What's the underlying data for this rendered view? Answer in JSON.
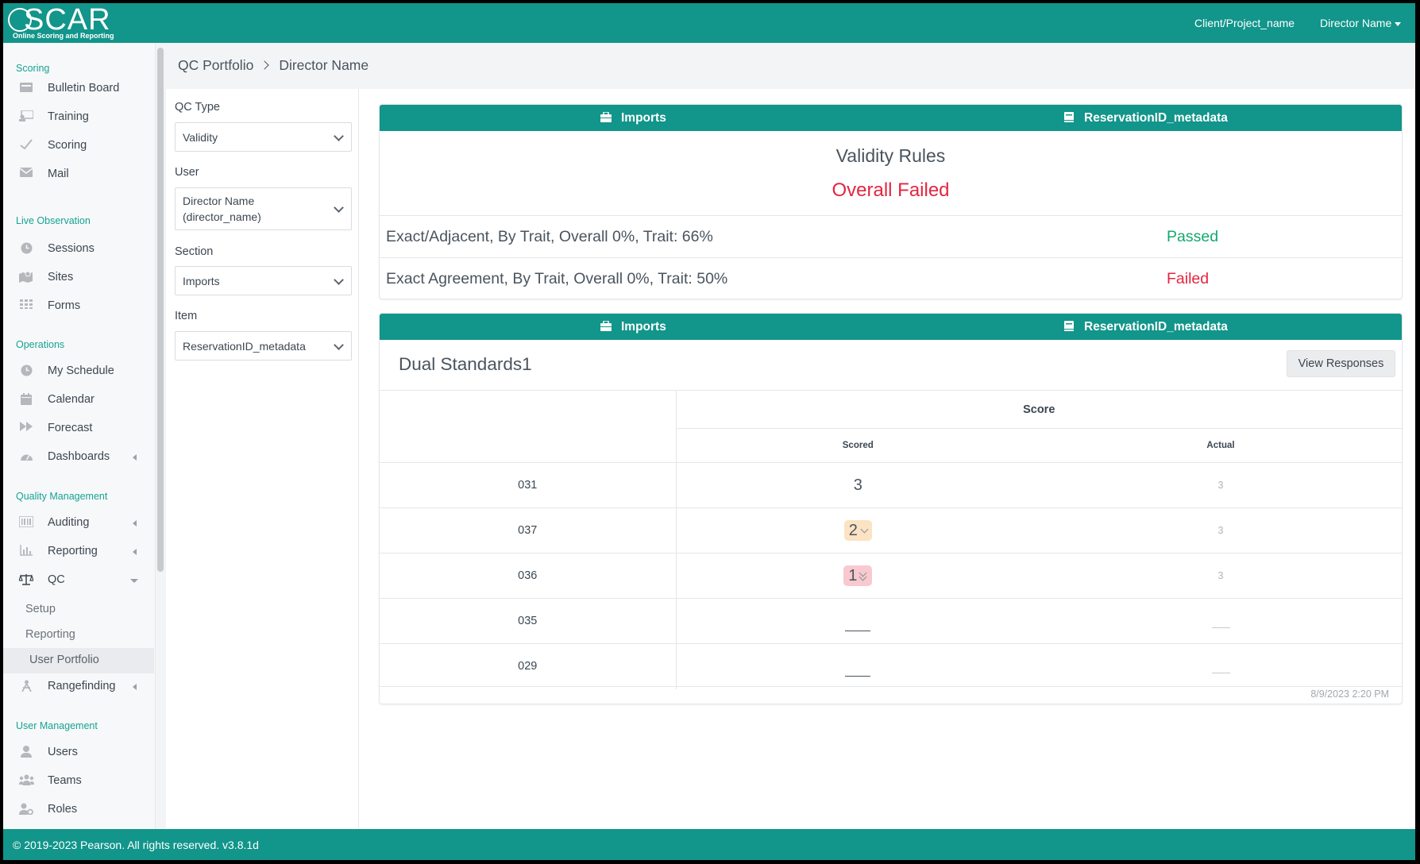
{
  "app": {
    "logo_text": "SCAR",
    "logo_tagline": "Online Scoring and Reporting",
    "project": "Client/Project_name",
    "user_menu": "Director Name"
  },
  "sidebar": {
    "sections": [
      {
        "heading": "Scoring",
        "items": [
          {
            "label": "Bulletin Board",
            "icon": "bulletin-board-icon"
          },
          {
            "label": "Training",
            "icon": "training-icon"
          },
          {
            "label": "Scoring",
            "icon": "check-icon"
          },
          {
            "label": "Mail",
            "icon": "mail-icon"
          }
        ]
      },
      {
        "heading": "Live Observation",
        "items": [
          {
            "label": "Sessions",
            "icon": "clock-icon"
          },
          {
            "label": "Sites",
            "icon": "map-icon"
          },
          {
            "label": "Forms",
            "icon": "grid-icon"
          }
        ]
      },
      {
        "heading": "Operations",
        "items": [
          {
            "label": "My Schedule",
            "icon": "clock-icon"
          },
          {
            "label": "Calendar",
            "icon": "calendar-icon"
          },
          {
            "label": "Forecast",
            "icon": "fast-forward-icon"
          },
          {
            "label": "Dashboards",
            "icon": "gauge-icon"
          }
        ]
      },
      {
        "heading": "Quality Management",
        "items": [
          {
            "label": "Auditing",
            "icon": "barcode-icon"
          },
          {
            "label": "Reporting",
            "icon": "bar-chart-icon"
          },
          {
            "label": "QC",
            "icon": "balance-scale-icon"
          }
        ],
        "sub_items": [
          "Setup",
          "Reporting",
          "User Portfolio"
        ]
      },
      {
        "heading": "Rangefinding",
        "items": [
          {
            "label": "Rangefinding",
            "icon": "compass-icon"
          }
        ]
      },
      {
        "heading": "User Management",
        "items": [
          {
            "label": "Users",
            "icon": "user-icon"
          },
          {
            "label": "Teams",
            "icon": "users-icon"
          },
          {
            "label": "Roles",
            "icon": "user-cog-icon"
          }
        ]
      }
    ]
  },
  "breadcrumb": {
    "root": "QC Portfolio",
    "current": "Director Name"
  },
  "filters": {
    "qc_type": {
      "label": "QC Type",
      "value": "Validity"
    },
    "user": {
      "label": "User",
      "value": "Director Name\n(director_name)"
    },
    "section": {
      "label": "Section",
      "value": "Imports"
    },
    "item": {
      "label": "Item",
      "value": "ReservationID_metadata"
    }
  },
  "validity_card": {
    "section_label": "Imports",
    "item_label": "ReservationID_metadata",
    "title": "Validity Rules",
    "overall": "Overall Failed",
    "rules": [
      {
        "rule": "Exact/Adjacent, By Trait, Overall 0%, Trait: 66%",
        "status": "Passed",
        "status_color": "#14a86e"
      },
      {
        "rule": "Exact Agreement, By Trait, Overall 0%, Trait: 50%",
        "status": "Failed",
        "status_color": "#e4253f"
      }
    ]
  },
  "standards_card": {
    "section_label": "Imports",
    "item_label": "ReservationID_metadata",
    "title": "Dual Standards1",
    "view_button": "View Responses",
    "score_header": "Score",
    "col_scored": "Scored",
    "col_actual": "Actual",
    "rows": [
      {
        "id": "031",
        "scored": "3",
        "actual": "3"
      },
      {
        "id": "037",
        "scored": "2",
        "actual": "3"
      },
      {
        "id": "036",
        "scored": "1",
        "actual": "3"
      },
      {
        "id": "035",
        "scored": "—",
        "actual": "—"
      },
      {
        "id": "029",
        "scored": "—",
        "actual": "—"
      }
    ],
    "timestamp": "8/9/2023 2:20 PM"
  },
  "footer": {
    "text": "© 2019-2023 Pearson. All rights reserved. v3.8.1d"
  },
  "colors": {
    "brand": "#12958a",
    "accent_text": "#16a394",
    "failed": "#e4253f",
    "passed": "#14a86e"
  }
}
